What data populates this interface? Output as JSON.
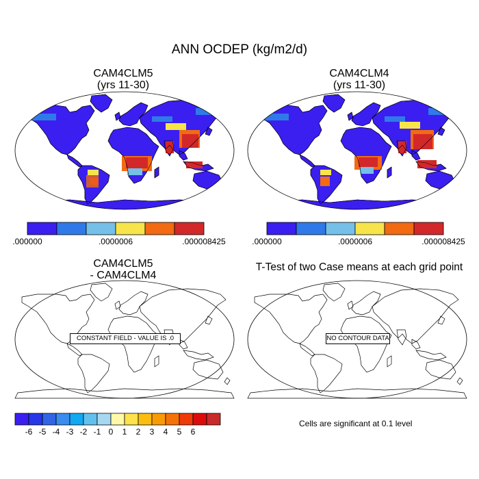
{
  "title": "ANN OCDEP (kg/m2/d)",
  "panels": [
    {
      "id": "case1",
      "title_line1": "CAM4CLM5",
      "title_line2": "(yrs 11-30)"
    },
    {
      "id": "case2",
      "title_line1": "CAM4CLM4",
      "title_line2": "(yrs 11-30)"
    },
    {
      "id": "diff",
      "title_line1": "CAM4CLM5",
      "title_line2": "- CAM4CLM4",
      "annotation": "CONSTANT FIELD - VALUE IS .0"
    },
    {
      "id": "ttest",
      "title_line1": "T-Test of two Case means at each grid point",
      "annotation": "NO CONTOUR DATA",
      "note": "Cells are significant at 0.1 level"
    }
  ],
  "colorbar_cases": {
    "colors": [
      "#3b1ef0",
      "#2f7ae8",
      "#74c0e8",
      "#f6e44a",
      "#f26a12",
      "#d3282a"
    ],
    "labels": [
      ".000000",
      ".0000006",
      ".000008425"
    ]
  },
  "colorbar_diff": {
    "colors": [
      "#3b1ef0",
      "#2636e8",
      "#3265e6",
      "#3a8cee",
      "#12a8f2",
      "#63c0ec",
      "#a6d8f2",
      "#fff9a8",
      "#fde24c",
      "#fbbe10",
      "#f99b06",
      "#f57208",
      "#ef3a0a",
      "#dd0c0c",
      "#c92a2a"
    ],
    "labels": [
      "-6",
      "-5",
      "-4",
      "-3",
      "-2",
      "-1",
      "0",
      "1",
      "2",
      "3",
      "4",
      "5",
      "6"
    ]
  },
  "field_colors": {
    "ocean": "#ffffff",
    "low": "#3b1ef0",
    "mid_low": "#2f7ae8",
    "mid": "#74c0e8",
    "mid_high": "#f6e44a",
    "high": "#f26a12",
    "peak": "#d3282a"
  }
}
